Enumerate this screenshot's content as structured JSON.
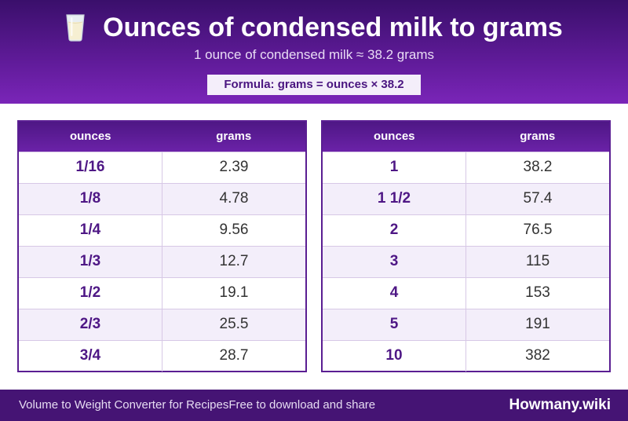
{
  "header": {
    "title": "Ounces of condensed milk to grams",
    "icon": "milk-glass-icon",
    "subtitle": "1 ounce of condensed milk ≈ 38.2 grams",
    "formula": "Formula: grams = ounces × 38.2"
  },
  "tables": {
    "left": {
      "headers": [
        "ounces",
        "grams"
      ],
      "rows": [
        [
          "1/16",
          "2.39"
        ],
        [
          "1/8",
          "4.78"
        ],
        [
          "1/4",
          "9.56"
        ],
        [
          "1/3",
          "12.7"
        ],
        [
          "1/2",
          "19.1"
        ],
        [
          "2/3",
          "25.5"
        ],
        [
          "3/4",
          "28.7"
        ]
      ]
    },
    "right": {
      "headers": [
        "ounces",
        "grams"
      ],
      "rows": [
        [
          "1",
          "38.2"
        ],
        [
          "1 1/2",
          "57.4"
        ],
        [
          "2",
          "76.5"
        ],
        [
          "3",
          "115"
        ],
        [
          "4",
          "153"
        ],
        [
          "5",
          "191"
        ],
        [
          "10",
          "382"
        ]
      ]
    }
  },
  "footer": {
    "left_text": "Volume to Weight Converter for RecipesFree to download and share",
    "brand": "Howmany.wiki"
  },
  "colors": {
    "header_dark": "#3a0f6b",
    "header_light": "#7a25b8",
    "accent": "#4e1785",
    "row_alt": "#f3eefa",
    "footer": "#451474"
  }
}
